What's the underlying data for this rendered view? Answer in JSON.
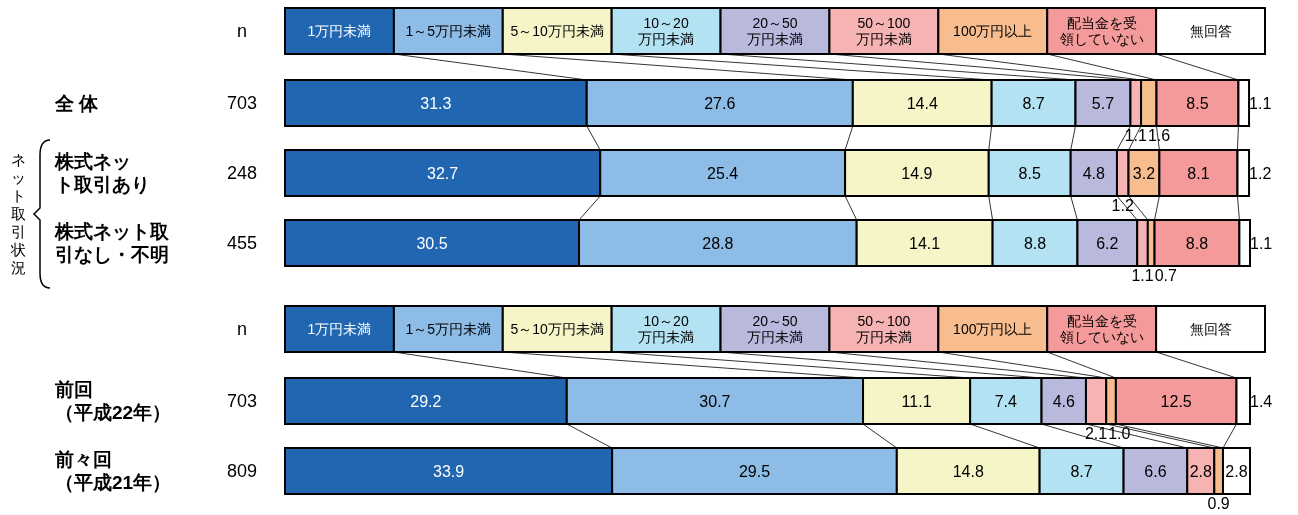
{
  "chart_data": [
    {
      "type": "bar",
      "orientation": "horizontal",
      "stacked": true,
      "legend": "top",
      "categories": [
        "全 体",
        "株式ネット取引あり",
        "株式ネット取引なし・不明"
      ],
      "series": [
        {
          "name": "1万円未満",
          "color": "#2166b1",
          "values": [
            31.3,
            32.7,
            30.5
          ],
          "value_labels": [
            "31.3",
            "32.7",
            "30.5"
          ]
        },
        {
          "name": "1～5万円未満",
          "color": "#8dbde6",
          "values": [
            27.6,
            25.4,
            28.8
          ],
          "value_labels": [
            "27.6",
            "25.4",
            "28.8"
          ]
        },
        {
          "name": "5～10万円未満",
          "color": "#f5f5c8",
          "values": [
            14.4,
            14.9,
            14.1
          ],
          "value_labels": [
            "14.4",
            "14.9",
            "14.1"
          ]
        },
        {
          "name": "10～20万円未満",
          "color": "#b3e2f2",
          "values": [
            8.7,
            8.5,
            8.8
          ],
          "value_labels": [
            "8.7",
            "8.5",
            "8.8"
          ]
        },
        {
          "name": "20～50万円未満",
          "color": "#b9b9de",
          "values": [
            5.7,
            4.8,
            6.2
          ],
          "value_labels": [
            "5.7",
            "4.8",
            "6.2"
          ]
        },
        {
          "name": "50～100万円未満",
          "color": "#f6b3b3",
          "values": [
            1.1,
            1.2,
            1.1
          ],
          "value_labels": [
            "1.1",
            "1.2",
            "1.1"
          ]
        },
        {
          "name": "100万円以上",
          "color": "#f8bd8f",
          "values": [
            1.6,
            3.2,
            0.7
          ],
          "value_labels": [
            "1.6",
            "3.2",
            "0.7"
          ]
        },
        {
          "name": "配当金を受領していない",
          "color": "#f49a9a",
          "values": [
            8.5,
            8.1,
            8.8
          ],
          "value_labels": [
            "8.5",
            "8.1",
            "8.8"
          ]
        },
        {
          "name": "無回答",
          "color": "#ffffff",
          "values": [
            1.1,
            1.2,
            1.1
          ],
          "value_labels": [
            "1.1",
            "1.2",
            "1.1"
          ]
        }
      ],
      "annotations": [
        "n",
        "ネット取引状況",
        "703",
        "248",
        "455"
      ]
    },
    {
      "type": "bar",
      "orientation": "horizontal",
      "stacked": true,
      "legend": "top",
      "categories": [
        "前回（平成22年）",
        "前々回（平成21年）"
      ],
      "series": [
        {
          "name": "1万円未満",
          "color": "#2166b1",
          "values": [
            29.2,
            33.9
          ],
          "value_labels": [
            "29.2",
            "33.9"
          ]
        },
        {
          "name": "1～5万円未満",
          "color": "#8dbde6",
          "values": [
            30.7,
            29.5
          ],
          "value_labels": [
            "30.7",
            "29.5"
          ]
        },
        {
          "name": "5～10万円未満",
          "color": "#f5f5c8",
          "values": [
            11.1,
            14.8
          ],
          "value_labels": [
            "11.1",
            "14.8"
          ]
        },
        {
          "name": "10～20万円未満",
          "color": "#b3e2f2",
          "values": [
            7.4,
            8.7
          ],
          "value_labels": [
            "7.4",
            "8.7"
          ]
        },
        {
          "name": "20～50万円未満",
          "color": "#b9b9de",
          "values": [
            4.6,
            6.6
          ],
          "value_labels": [
            "4.6",
            "6.6"
          ]
        },
        {
          "name": "50～100万円未満",
          "color": "#f6b3b3",
          "values": [
            2.1,
            2.8
          ],
          "value_labels": [
            "2.1",
            "2.8"
          ]
        },
        {
          "name": "100万円以上",
          "color": "#f8bd8f",
          "values": [
            1.0,
            0.9
          ],
          "value_labels": [
            "1.0",
            "0.9"
          ]
        },
        {
          "name": "配当金を受領していない",
          "color": "#f49a9a",
          "values": [
            12.5,
            null
          ],
          "value_labels": [
            "12.5",
            null
          ]
        },
        {
          "name": "無回答",
          "color": "#ffffff",
          "values": [
            1.4,
            2.8
          ],
          "value_labels": [
            "1.4",
            "2.8"
          ]
        }
      ],
      "annotations": [
        "n",
        "703",
        "809"
      ]
    }
  ]
}
